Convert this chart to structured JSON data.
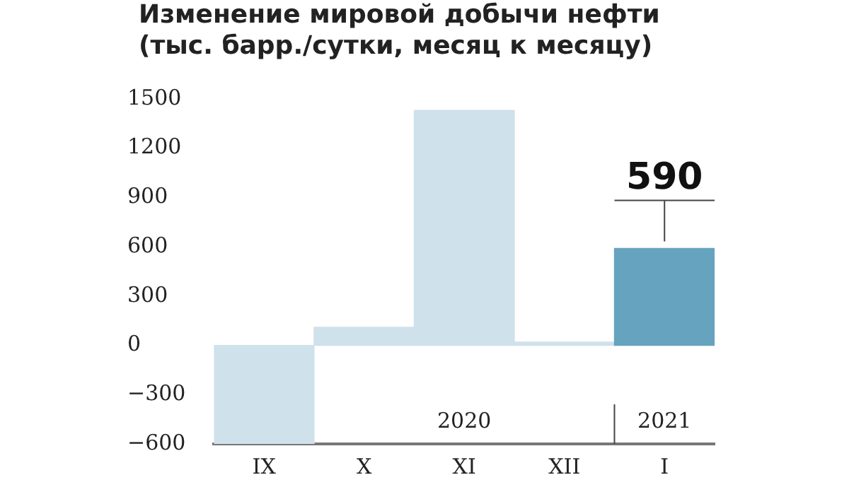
{
  "chart_data": {
    "type": "bar",
    "title": "Изменение мировой добычи нефти",
    "subtitle": "(тыс. барр./сутки, месяц к месяцу)",
    "categories": [
      "IX",
      "X",
      "XI",
      "XII",
      "I"
    ],
    "series": [
      {
        "colors": [
          "#cfe1eb",
          "#cfe1eb",
          "#cfe1eb",
          "#cfe1eb",
          "#66a3bf"
        ],
        "values": [
          -600,
          110,
          1430,
          20,
          590
        ],
        "value_labels": [
          null,
          null,
          null,
          null,
          "590"
        ]
      }
    ],
    "ylim": [
      -600,
      1500
    ],
    "yticks": [
      {
        "value": -600,
        "label": "−600"
      },
      {
        "value": -300,
        "label": "−300"
      },
      0,
      300,
      600,
      900,
      1200,
      1500
    ],
    "annotations": [
      "2020",
      "2021"
    ],
    "grid": false,
    "legend": false
  }
}
